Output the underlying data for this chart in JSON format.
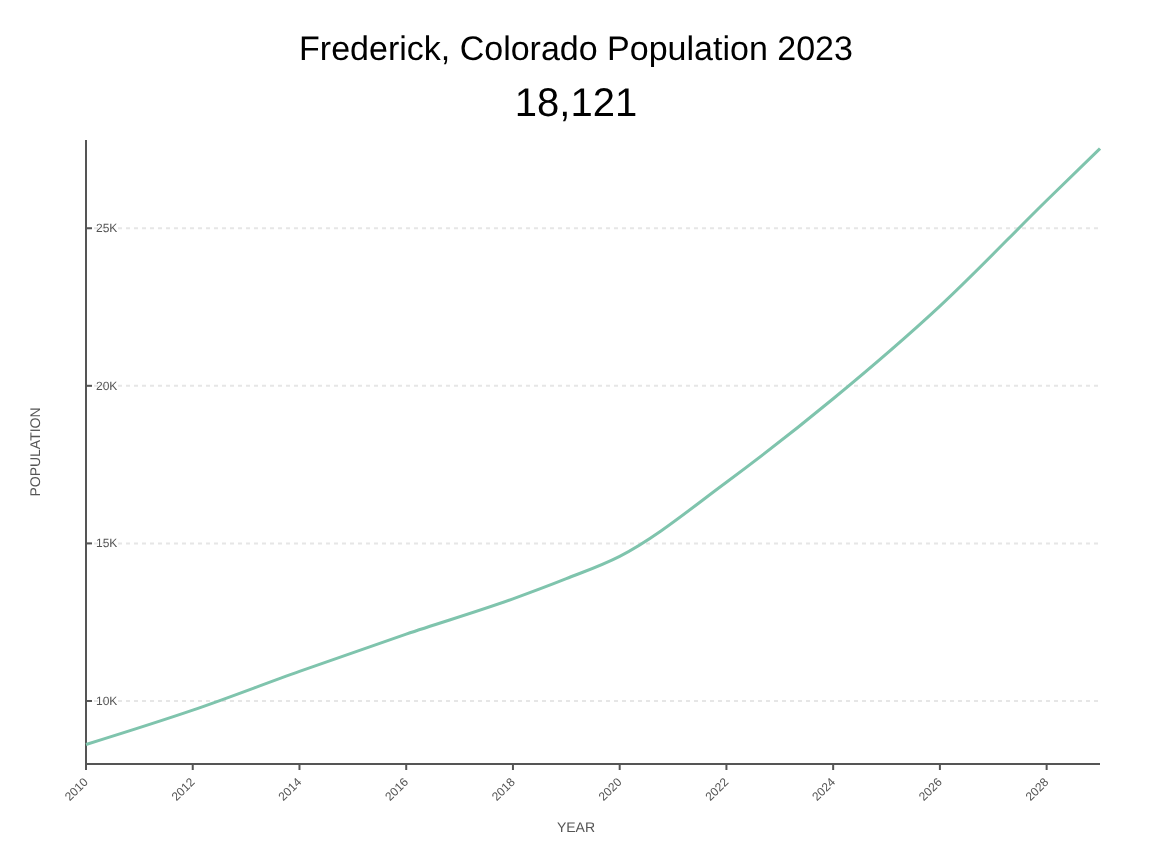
{
  "chart_data": {
    "type": "line",
    "title": "Frederick, Colorado Population 2023",
    "subtitle": "18,121",
    "xlabel": "YEAR",
    "ylabel": "POPULATION",
    "x": [
      2010,
      2012,
      2014,
      2016,
      2018,
      2019,
      2020,
      2022,
      2024,
      2026,
      2028,
      2029
    ],
    "series": [
      {
        "color": "#7fc4ad",
        "values": [
          8620,
          9710,
          10940,
          12120,
          13240,
          13880,
          14590,
          16940,
          19590,
          22530,
          25880,
          27530
        ]
      }
    ],
    "xlim": [
      2010,
      2029
    ],
    "xticks": [
      2010,
      2012,
      2014,
      2016,
      2018,
      2020,
      2022,
      2024,
      2026,
      2028
    ],
    "ylim": [
      8000,
      27800
    ],
    "yticks": [
      {
        "value": 10000,
        "label": "10K"
      },
      {
        "value": 15000,
        "label": "15K"
      },
      {
        "value": 20000,
        "label": "20K"
      },
      {
        "value": 25000,
        "label": "25K"
      }
    ],
    "grid": "y",
    "marker": "none",
    "line_style": "solid"
  }
}
